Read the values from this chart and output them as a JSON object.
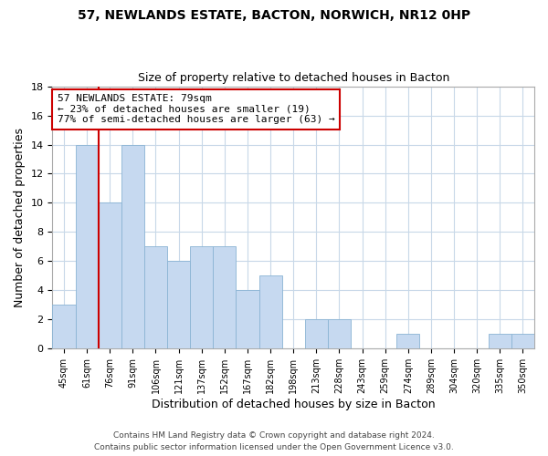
{
  "title1": "57, NEWLANDS ESTATE, BACTON, NORWICH, NR12 0HP",
  "title2": "Size of property relative to detached houses in Bacton",
  "xlabel": "Distribution of detached houses by size in Bacton",
  "ylabel": "Number of detached properties",
  "bin_labels": [
    "45sqm",
    "61sqm",
    "76sqm",
    "91sqm",
    "106sqm",
    "121sqm",
    "137sqm",
    "152sqm",
    "167sqm",
    "182sqm",
    "198sqm",
    "213sqm",
    "228sqm",
    "243sqm",
    "259sqm",
    "274sqm",
    "289sqm",
    "304sqm",
    "320sqm",
    "335sqm",
    "350sqm"
  ],
  "bar_values": [
    3,
    14,
    10,
    14,
    7,
    6,
    7,
    7,
    4,
    5,
    0,
    2,
    2,
    0,
    0,
    1,
    0,
    0,
    0,
    1,
    1
  ],
  "bar_color": "#c6d9f0",
  "bar_edge_color": "#8ab4d4",
  "vline_x_index": 2,
  "vline_color": "#cc0000",
  "annotation_text": "57 NEWLANDS ESTATE: 79sqm\n← 23% of detached houses are smaller (19)\n77% of semi-detached houses are larger (63) →",
  "annotation_box_color": "#ffffff",
  "annotation_box_edge": "#cc0000",
  "ylim": [
    0,
    18
  ],
  "yticks": [
    0,
    2,
    4,
    6,
    8,
    10,
    12,
    14,
    16,
    18
  ],
  "footer1": "Contains HM Land Registry data © Crown copyright and database right 2024.",
  "footer2": "Contains public sector information licensed under the Open Government Licence v3.0.",
  "bg_color": "#ffffff",
  "grid_color": "#c8d8e8"
}
